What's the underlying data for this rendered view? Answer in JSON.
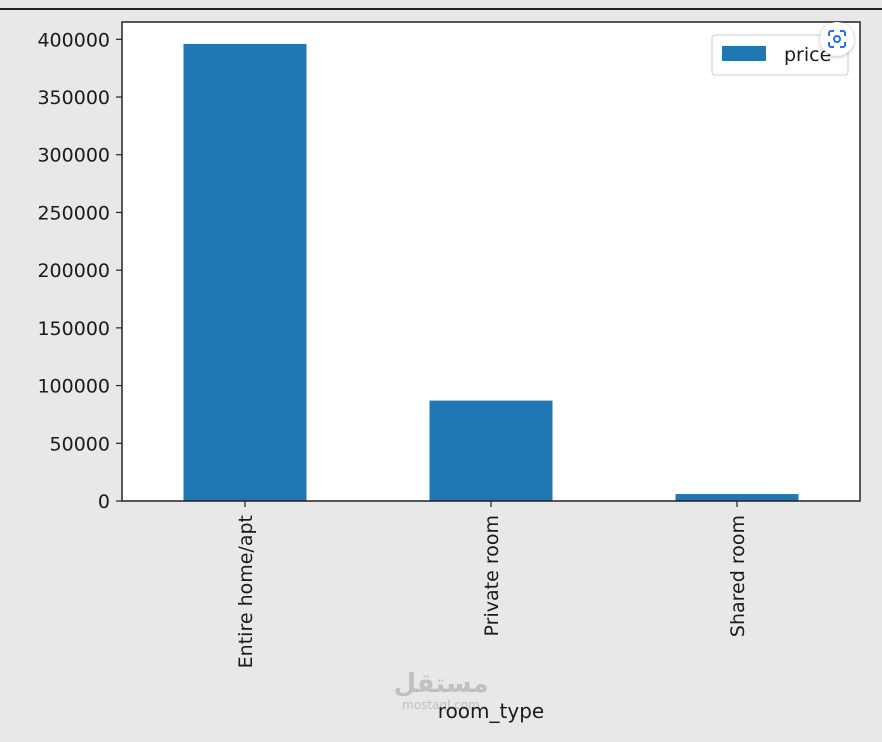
{
  "chart_data": {
    "type": "bar",
    "categories": [
      "Entire home/apt",
      "Private room",
      "Shared room"
    ],
    "series": [
      {
        "name": "price",
        "values": [
          396000,
          87000,
          6000
        ]
      }
    ],
    "title": "",
    "xlabel": "room_type",
    "ylabel": "",
    "ylim": [
      0,
      415000
    ],
    "yticks": [
      0,
      50000,
      100000,
      150000,
      200000,
      250000,
      300000,
      350000,
      400000
    ],
    "ytick_labels": [
      "0",
      "50000",
      "100000",
      "150000",
      "200000",
      "250000",
      "300000",
      "350000",
      "400000"
    ],
    "grid": false,
    "legend": "top-right",
    "bar_color": "#1f77b4",
    "xtick_rotation": "vertical"
  },
  "watermark": {
    "text": "مستقل",
    "subtext": "mostaql.com"
  },
  "overlay": {
    "lens_icon": "google-lens-icon"
  }
}
